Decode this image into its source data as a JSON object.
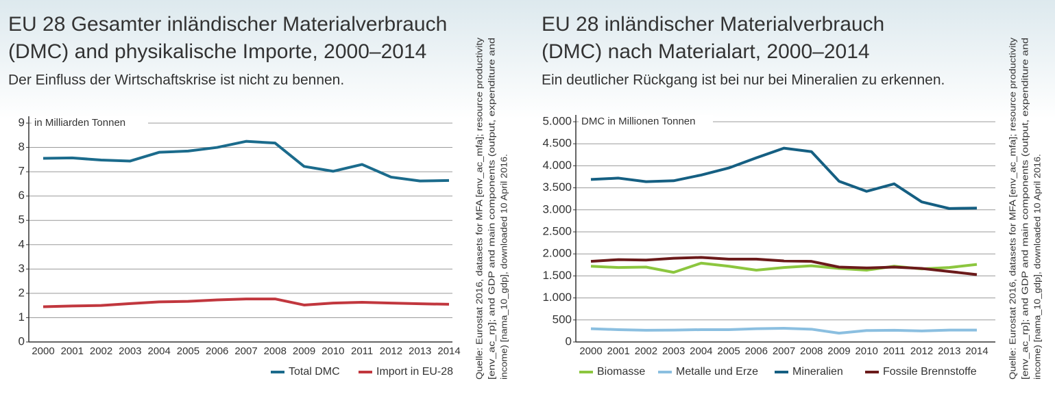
{
  "chart_data": [
    {
      "type": "line",
      "title": [
        "EU 28 Gesamter inländischer Materialverbrauch",
        "(DMC) and physikalische Importe, 2000–2014"
      ],
      "subtitle": "Der Einfluss der Wirtschaftskrise ist nicht zu bennen.",
      "y_label": "in Milliarden Tonnen",
      "source": [
        "Quelle: Eurostat 2016, datasets for MFA [env_ac_mfa]; resource productivity",
        "[env_ac_rp]; and GDP and main components (output, expenditure and",
        "income) [nama_10_gdp], downloaded 10 April 2016."
      ],
      "categories": [
        "2000",
        "2001",
        "2002",
        "2003",
        "2004",
        "2005",
        "2006",
        "2007",
        "2008",
        "2009",
        "2010",
        "2011",
        "2012",
        "2013",
        "2014"
      ],
      "series": [
        {
          "name": "Total DMC",
          "color": "#1b6b8c",
          "values": [
            7.55,
            7.57,
            7.48,
            7.44,
            7.8,
            7.85,
            8.0,
            8.25,
            8.18,
            7.22,
            7.02,
            7.3,
            6.78,
            6.62,
            6.64
          ]
        },
        {
          "name": "Import in EU-28",
          "color": "#c1373e",
          "values": [
            1.45,
            1.48,
            1.5,
            1.58,
            1.65,
            1.67,
            1.73,
            1.77,
            1.77,
            1.52,
            1.6,
            1.63,
            1.6,
            1.57,
            1.55
          ]
        }
      ],
      "ylim": [
        0,
        9
      ],
      "yticks": [
        0,
        1,
        2,
        3,
        4,
        5,
        6,
        7,
        8,
        9
      ],
      "grid": true
    },
    {
      "type": "line",
      "title": [
        "EU 28 inländischer Materialverbrauch",
        "(DMC) nach Materialart, 2000–2014"
      ],
      "subtitle": "Ein deutlicher Rückgang ist bei nur bei Mineralien zu erkennen.",
      "y_label": "DMC in Millionen Tonnen",
      "source": [
        "Quelle: Eurostat 2016, datasets for MFA [env_ac_mfa]; resource productivity",
        "[env_ac_rp]; and GDP and main components (output, expenditure and",
        "income) [nama_10_gdp], downloaded 10 April 2016."
      ],
      "categories": [
        "2000",
        "2001",
        "2002",
        "2003",
        "2004",
        "2005",
        "2006",
        "2007",
        "2008",
        "2009",
        "2010",
        "2011",
        "2012",
        "2013",
        "2014"
      ],
      "series": [
        {
          "name": "Biomasse",
          "color": "#8cc63f",
          "values": [
            1720,
            1690,
            1700,
            1580,
            1790,
            1720,
            1630,
            1690,
            1730,
            1670,
            1630,
            1720,
            1660,
            1690,
            1760
          ]
        },
        {
          "name": "Metalle und Erze",
          "color": "#8bbfe0",
          "values": [
            300,
            280,
            265,
            270,
            280,
            280,
            300,
            310,
            290,
            200,
            260,
            265,
            250,
            270,
            270
          ]
        },
        {
          "name": "Mineralien",
          "color": "#155f82",
          "values": [
            3690,
            3720,
            3640,
            3660,
            3790,
            3950,
            4180,
            4400,
            4320,
            3650,
            3420,
            3590,
            3180,
            3030,
            3040
          ]
        },
        {
          "name": "Fossile Brennstoffe",
          "color": "#6b1a1a",
          "values": [
            1830,
            1870,
            1860,
            1900,
            1920,
            1880,
            1880,
            1840,
            1830,
            1700,
            1680,
            1700,
            1670,
            1600,
            1530
          ]
        }
      ],
      "ylim": [
        0,
        5000
      ],
      "yticks": [
        0,
        500,
        {
          "value": 1000,
          "label": "1.000"
        },
        {
          "value": 1500,
          "label": "1.500"
        },
        {
          "value": 2000,
          "label": "2.000"
        },
        {
          "value": 2500,
          "label": "2.500"
        },
        {
          "value": 3000,
          "label": "3.000"
        },
        {
          "value": 3500,
          "label": "3.500"
        },
        {
          "value": 4000,
          "label": "4.000"
        },
        {
          "value": 4500,
          "label": "4.500"
        },
        {
          "value": 5000,
          "label": "5.000"
        }
      ],
      "grid": true
    }
  ]
}
